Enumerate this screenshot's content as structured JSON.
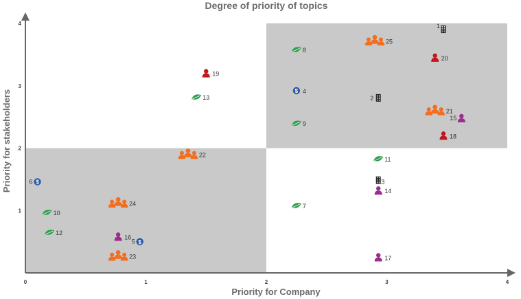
{
  "chart_data": {
    "type": "scatter",
    "title": "Degree of priority of topics",
    "xlabel": "Priority for Company",
    "ylabel": "Priority for stakeholders",
    "xlim": [
      0,
      4
    ],
    "ylim": [
      0,
      4
    ],
    "x_ticks": [
      "0",
      "1",
      "2",
      "3",
      "4"
    ],
    "y_ticks": [
      "1",
      "2",
      "3",
      "4"
    ],
    "shaded_quadrants": [
      "bottom-left",
      "top-right"
    ],
    "shade_color": "#c9c9c9",
    "legend": "none",
    "colors": {
      "group": "#f26f21",
      "person-red": "#c4161c",
      "person-purple": "#9b2d8f",
      "leaf": "#2e9e4a",
      "money": "#2b5aa6",
      "building": "#222222"
    },
    "points": [
      {
        "id": "1",
        "x": 3.47,
        "y": 3.9,
        "icon": "building"
      },
      {
        "id": "2",
        "x": 2.93,
        "y": 2.8,
        "icon": "building"
      },
      {
        "id": "3",
        "x": 2.93,
        "y": 1.48,
        "icon": "building"
      },
      {
        "id": "4",
        "x": 2.25,
        "y": 2.92,
        "icon": "money"
      },
      {
        "id": "5",
        "x": 0.95,
        "y": 0.5,
        "icon": "money"
      },
      {
        "id": "6",
        "x": 0.1,
        "y": 1.46,
        "icon": "money"
      },
      {
        "id": "7",
        "x": 2.25,
        "y": 1.08,
        "icon": "leaf"
      },
      {
        "id": "8",
        "x": 2.25,
        "y": 3.58,
        "icon": "leaf"
      },
      {
        "id": "9",
        "x": 2.25,
        "y": 2.4,
        "icon": "leaf"
      },
      {
        "id": "10",
        "x": 0.18,
        "y": 0.97,
        "icon": "leaf"
      },
      {
        "id": "11",
        "x": 2.93,
        "y": 1.83,
        "icon": "leaf"
      },
      {
        "id": "12",
        "x": 0.2,
        "y": 0.65,
        "icon": "leaf"
      },
      {
        "id": "13",
        "x": 1.42,
        "y": 2.82,
        "icon": "leaf"
      },
      {
        "id": "14",
        "x": 2.93,
        "y": 1.32,
        "icon": "person-purple"
      },
      {
        "id": "15",
        "x": 3.62,
        "y": 2.48,
        "icon": "person-purple"
      },
      {
        "id": "16",
        "x": 0.77,
        "y": 0.58,
        "icon": "person-purple"
      },
      {
        "id": "17",
        "x": 2.93,
        "y": 0.25,
        "icon": "person-purple"
      },
      {
        "id": "18",
        "x": 3.47,
        "y": 2.2,
        "icon": "person-red"
      },
      {
        "id": "19",
        "x": 1.5,
        "y": 3.2,
        "icon": "person-red"
      },
      {
        "id": "20",
        "x": 3.4,
        "y": 3.45,
        "icon": "person-red"
      },
      {
        "id": "21",
        "x": 3.4,
        "y": 2.6,
        "icon": "group"
      },
      {
        "id": "22",
        "x": 1.35,
        "y": 1.9,
        "icon": "group"
      },
      {
        "id": "23",
        "x": 0.77,
        "y": 0.27,
        "icon": "group"
      },
      {
        "id": "24",
        "x": 0.77,
        "y": 1.12,
        "icon": "group"
      },
      {
        "id": "25",
        "x": 2.9,
        "y": 3.72,
        "icon": "group"
      }
    ]
  }
}
